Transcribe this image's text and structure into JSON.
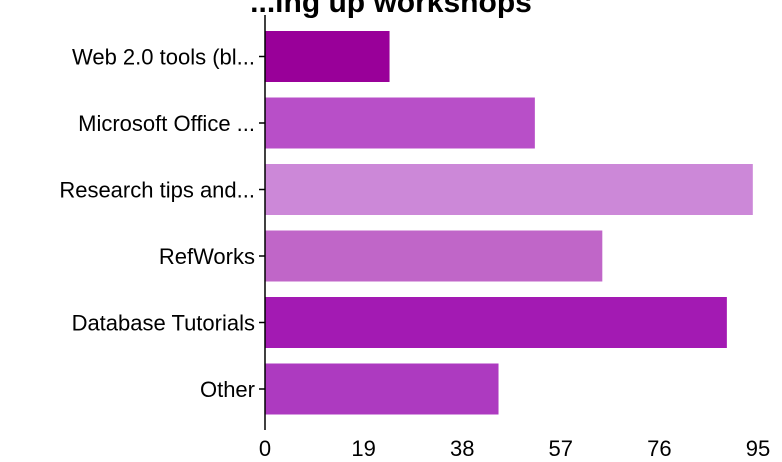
{
  "chart_data": {
    "type": "bar",
    "orientation": "horizontal",
    "title": "...ing up workshops",
    "categories": [
      "Web 2.0 tools (bl...",
      "Microsoft Office ...",
      "Research tips and...",
      "RefWorks",
      "Database Tutorials",
      "Other"
    ],
    "values": [
      24,
      52,
      94,
      65,
      89,
      45
    ],
    "bar_colors": [
      "#990099",
      "#b84fc8",
      "#cc88d8",
      "#c066c8",
      "#a31ab3",
      "#ad3ac0"
    ],
    "xlim": [
      0,
      95
    ],
    "xticks": [
      "0",
      "19",
      "38",
      "57",
      "76",
      "95"
    ],
    "grid": false
  }
}
